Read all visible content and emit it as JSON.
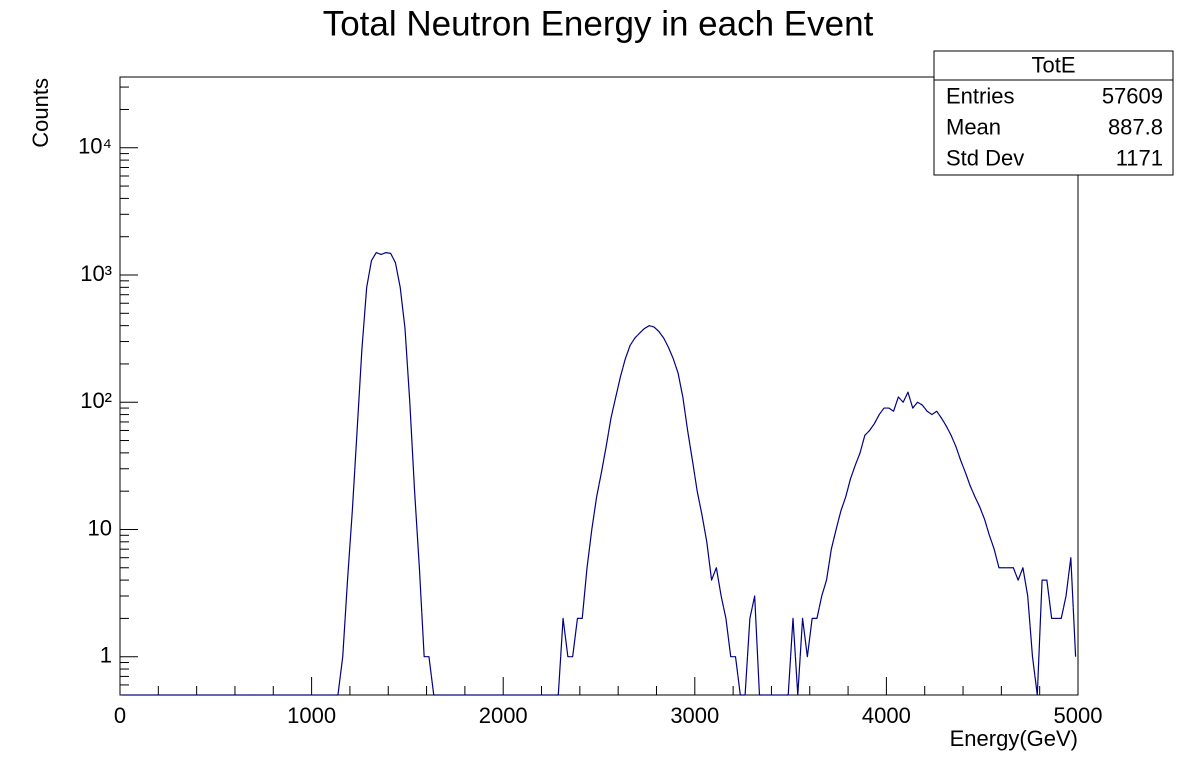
{
  "chart_data": {
    "type": "histogram",
    "title": "Total Neutron Energy in each Event",
    "xlabel": "Energy(GeV)",
    "ylabel": "Counts",
    "color": "#000080",
    "log_y": true,
    "bins": [
      0,
      25,
      50,
      75,
      100,
      125,
      150,
      175,
      200,
      225,
      250,
      275,
      300,
      325,
      350,
      375,
      400,
      425,
      450,
      475,
      500,
      525,
      550,
      575,
      600,
      625,
      650,
      675,
      700,
      725,
      750,
      775,
      800,
      825,
      850,
      875,
      900,
      925,
      950,
      975,
      1000,
      1025,
      1050,
      1075,
      1100,
      1125,
      1150,
      1175,
      1200,
      1225,
      1250,
      1275,
      1300,
      1325,
      1350,
      1375,
      1400,
      1425,
      1450,
      1475,
      1500,
      1525,
      1550,
      1575,
      1600,
      1625,
      1650,
      1675,
      1700,
      1725,
      1750,
      1775,
      1800,
      1825,
      1850,
      1875,
      1900,
      1925,
      1950,
      1975,
      2000,
      2025,
      2050,
      2075,
      2100,
      2125,
      2150,
      2175,
      2200,
      2225,
      2250,
      2275,
      2300,
      2325,
      2350,
      2375,
      2400,
      2425,
      2450,
      2475,
      2500,
      2525,
      2550,
      2575,
      2600,
      2625,
      2650,
      2675,
      2700,
      2725,
      2750,
      2775,
      2800,
      2825,
      2850,
      2875,
      2900,
      2925,
      2950,
      2975,
      3000,
      3025,
      3050,
      3075,
      3100,
      3125,
      3150,
      3175,
      3200,
      3225,
      3250,
      3275,
      3300,
      3325,
      3350,
      3375,
      3400,
      3425,
      3450,
      3475,
      3500,
      3525,
      3550,
      3575,
      3600,
      3625,
      3650,
      3675,
      3700,
      3725,
      3750,
      3775,
      3800,
      3825,
      3850,
      3875,
      3900,
      3925,
      3950,
      3975,
      4000,
      4025,
      4050,
      4075,
      4100,
      4125,
      4150,
      4175,
      4200,
      4225,
      4250,
      4275,
      4300,
      4325,
      4350,
      4375,
      4400,
      4425,
      4450,
      4475,
      4500,
      4525,
      4550,
      4575,
      4600,
      4625,
      4650,
      4675,
      4700,
      4725,
      4750,
      4775,
      4800,
      4825,
      4850,
      4875,
      4900,
      4925,
      4950,
      4975,
      5000
    ],
    "values": [
      0,
      0,
      0,
      0,
      0,
      0,
      0,
      0,
      0,
      0,
      0,
      0,
      0,
      0,
      0,
      0,
      0,
      0,
      0,
      0,
      0,
      0,
      0,
      0,
      0,
      0,
      0,
      0,
      0,
      0,
      0,
      0,
      0,
      0,
      0,
      0,
      0,
      0,
      0,
      0,
      0,
      0,
      0,
      0,
      0,
      0,
      1,
      4,
      14,
      60,
      260,
      800,
      1300,
      1500,
      1450,
      1500,
      1480,
      1250,
      800,
      380,
      100,
      20,
      5,
      1,
      1,
      0,
      0,
      0,
      0,
      0,
      0,
      0,
      0,
      0,
      0,
      0,
      0,
      0,
      0,
      0,
      0,
      0,
      0,
      0,
      0,
      0,
      0,
      0,
      0,
      0,
      0,
      0,
      2,
      1,
      1,
      2,
      2,
      5,
      10,
      18,
      28,
      45,
      75,
      110,
      160,
      220,
      280,
      320,
      350,
      380,
      400,
      390,
      360,
      320,
      270,
      220,
      170,
      110,
      60,
      35,
      20,
      13,
      8,
      4,
      5,
      3,
      2,
      1,
      1,
      0,
      0,
      2,
      3,
      0,
      0,
      0,
      0,
      0,
      0,
      0,
      2,
      0,
      2,
      1,
      2,
      2,
      3,
      4,
      7,
      10,
      14,
      18,
      25,
      32,
      40,
      55,
      60,
      68,
      80,
      90,
      90,
      85,
      110,
      100,
      120,
      90,
      100,
      95,
      85,
      80,
      85,
      75,
      65,
      55,
      45,
      35,
      28,
      22,
      18,
      15,
      12,
      9,
      7,
      5,
      5,
      5,
      5,
      4,
      5,
      3,
      1,
      0,
      4,
      4,
      2,
      2,
      2,
      3,
      6,
      1
    ],
    "xlim": [
      0,
      5000
    ],
    "xticks": [
      0,
      1000,
      2000,
      3000,
      4000,
      5000
    ],
    "xminorticks": [
      200,
      400,
      600,
      800,
      1200,
      1400,
      1600,
      1800,
      2200,
      2400,
      2600,
      2800,
      3200,
      3400,
      3600,
      3800,
      4200,
      4400,
      4600,
      4800
    ],
    "ylim": [
      0.5,
      36000
    ],
    "yticks": [
      1,
      10,
      {
        "value": 100,
        "label": "10²"
      },
      {
        "value": 1000,
        "label": "10³"
      },
      {
        "value": 10000,
        "label": "10⁴"
      }
    ],
    "yminorticks": [
      0.6,
      0.7,
      0.8,
      0.9,
      2,
      3,
      4,
      5,
      6,
      7,
      8,
      9,
      20,
      30,
      40,
      50,
      60,
      70,
      80,
      90,
      200,
      300,
      400,
      500,
      600,
      700,
      800,
      900,
      2000,
      3000,
      4000,
      5000,
      6000,
      7000,
      8000,
      9000,
      20000,
      30000
    ],
    "stats": {
      "title": "TotE",
      "rows": [
        [
          "Entries",
          "57609"
        ],
        [
          "Mean",
          "887.8"
        ],
        [
          "Std Dev",
          "1171"
        ]
      ]
    }
  }
}
